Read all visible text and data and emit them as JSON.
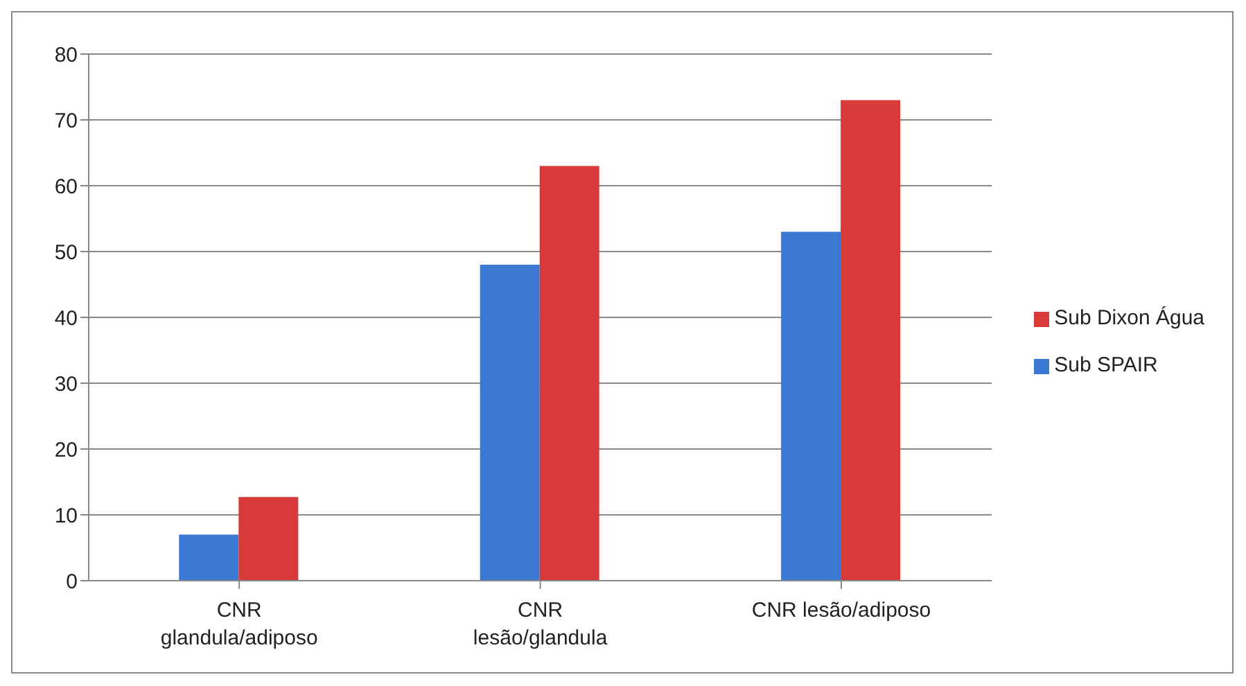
{
  "chart_data": {
    "type": "bar",
    "categories": [
      "CNR glandula/adiposo",
      "CNR lesão/glandula",
      "CNR lesão/adiposo"
    ],
    "series": [
      {
        "name": "Sub SPAIR",
        "color": "#3a78d4",
        "values": [
          7,
          48,
          53
        ]
      },
      {
        "name": "Sub Dixon Água",
        "color": "#d83a3a",
        "values": [
          12.7,
          63,
          73
        ]
      }
    ],
    "ylim": [
      0,
      80
    ],
    "yticks": [
      0,
      10,
      20,
      30,
      40,
      50,
      60,
      70,
      80
    ],
    "grid": "y",
    "legend": "right"
  }
}
